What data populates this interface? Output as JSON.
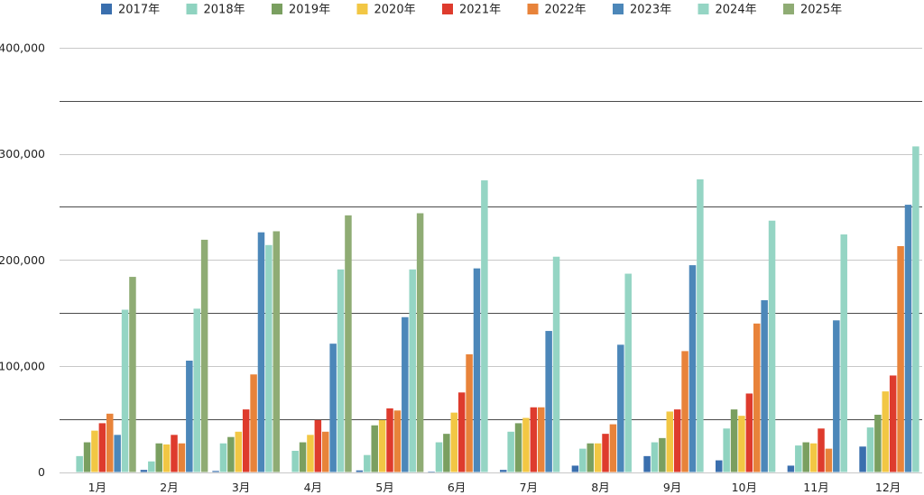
{
  "chart_data": {
    "type": "bar",
    "categories": [
      "1月",
      "2月",
      "3月",
      "4月",
      "5月",
      "6月",
      "7月",
      "8月",
      "9月",
      "10月",
      "11月",
      "12月"
    ],
    "ylim": [
      0,
      400000
    ],
    "yticks": [
      0,
      100000,
      200000,
      300000,
      400000
    ],
    "ytick_labels": [
      "0",
      "100,000",
      "200,000",
      "300,000",
      "400,000"
    ],
    "grid": true,
    "legend": "top",
    "series": [
      {
        "name": "2017年",
        "color": "#3a6fae",
        "values": [
          0,
          2000,
          1000,
          0,
          1500,
          500,
          2000,
          6000,
          15000,
          11000,
          6000,
          24000
        ]
      },
      {
        "name": "2018年",
        "color": "#8fd3c0",
        "values": [
          15000,
          10000,
          27000,
          20000,
          16000,
          28000,
          38000,
          22000,
          28000,
          41000,
          25000,
          42000
        ]
      },
      {
        "name": "2019年",
        "color": "#7a9f60",
        "values": [
          28000,
          27000,
          33000,
          28000,
          44000,
          36000,
          46000,
          27000,
          32000,
          59000,
          28000,
          54000
        ]
      },
      {
        "name": "2020年",
        "color": "#f2c744",
        "values": [
          39000,
          26000,
          38000,
          35000,
          49000,
          56000,
          51000,
          27000,
          57000,
          53000,
          27000,
          76000
        ]
      },
      {
        "name": "2021年",
        "color": "#de3b2d",
        "values": [
          46000,
          35000,
          59000,
          49000,
          60000,
          75000,
          61000,
          36000,
          59000,
          74000,
          41000,
          91000
        ]
      },
      {
        "name": "2022年",
        "color": "#e8833a",
        "values": [
          55000,
          27000,
          92000,
          38000,
          58000,
          111000,
          61000,
          45000,
          114000,
          140000,
          22000,
          213000
        ]
      },
      {
        "name": "2023年",
        "color": "#4c87b9",
        "values": [
          35000,
          105000,
          226000,
          121000,
          146000,
          192000,
          133000,
          120000,
          195000,
          162000,
          143000,
          252000
        ]
      },
      {
        "name": "2024年",
        "color": "#95d5c4",
        "values": [
          153000,
          154000,
          214000,
          191000,
          191000,
          275000,
          203000,
          187000,
          276000,
          237000,
          224000,
          307000
        ]
      },
      {
        "name": "2025年",
        "color": "#8fac74",
        "values": [
          184000,
          219000,
          227000,
          242000,
          244000,
          null,
          null,
          null,
          null,
          null,
          null,
          null
        ]
      }
    ]
  }
}
